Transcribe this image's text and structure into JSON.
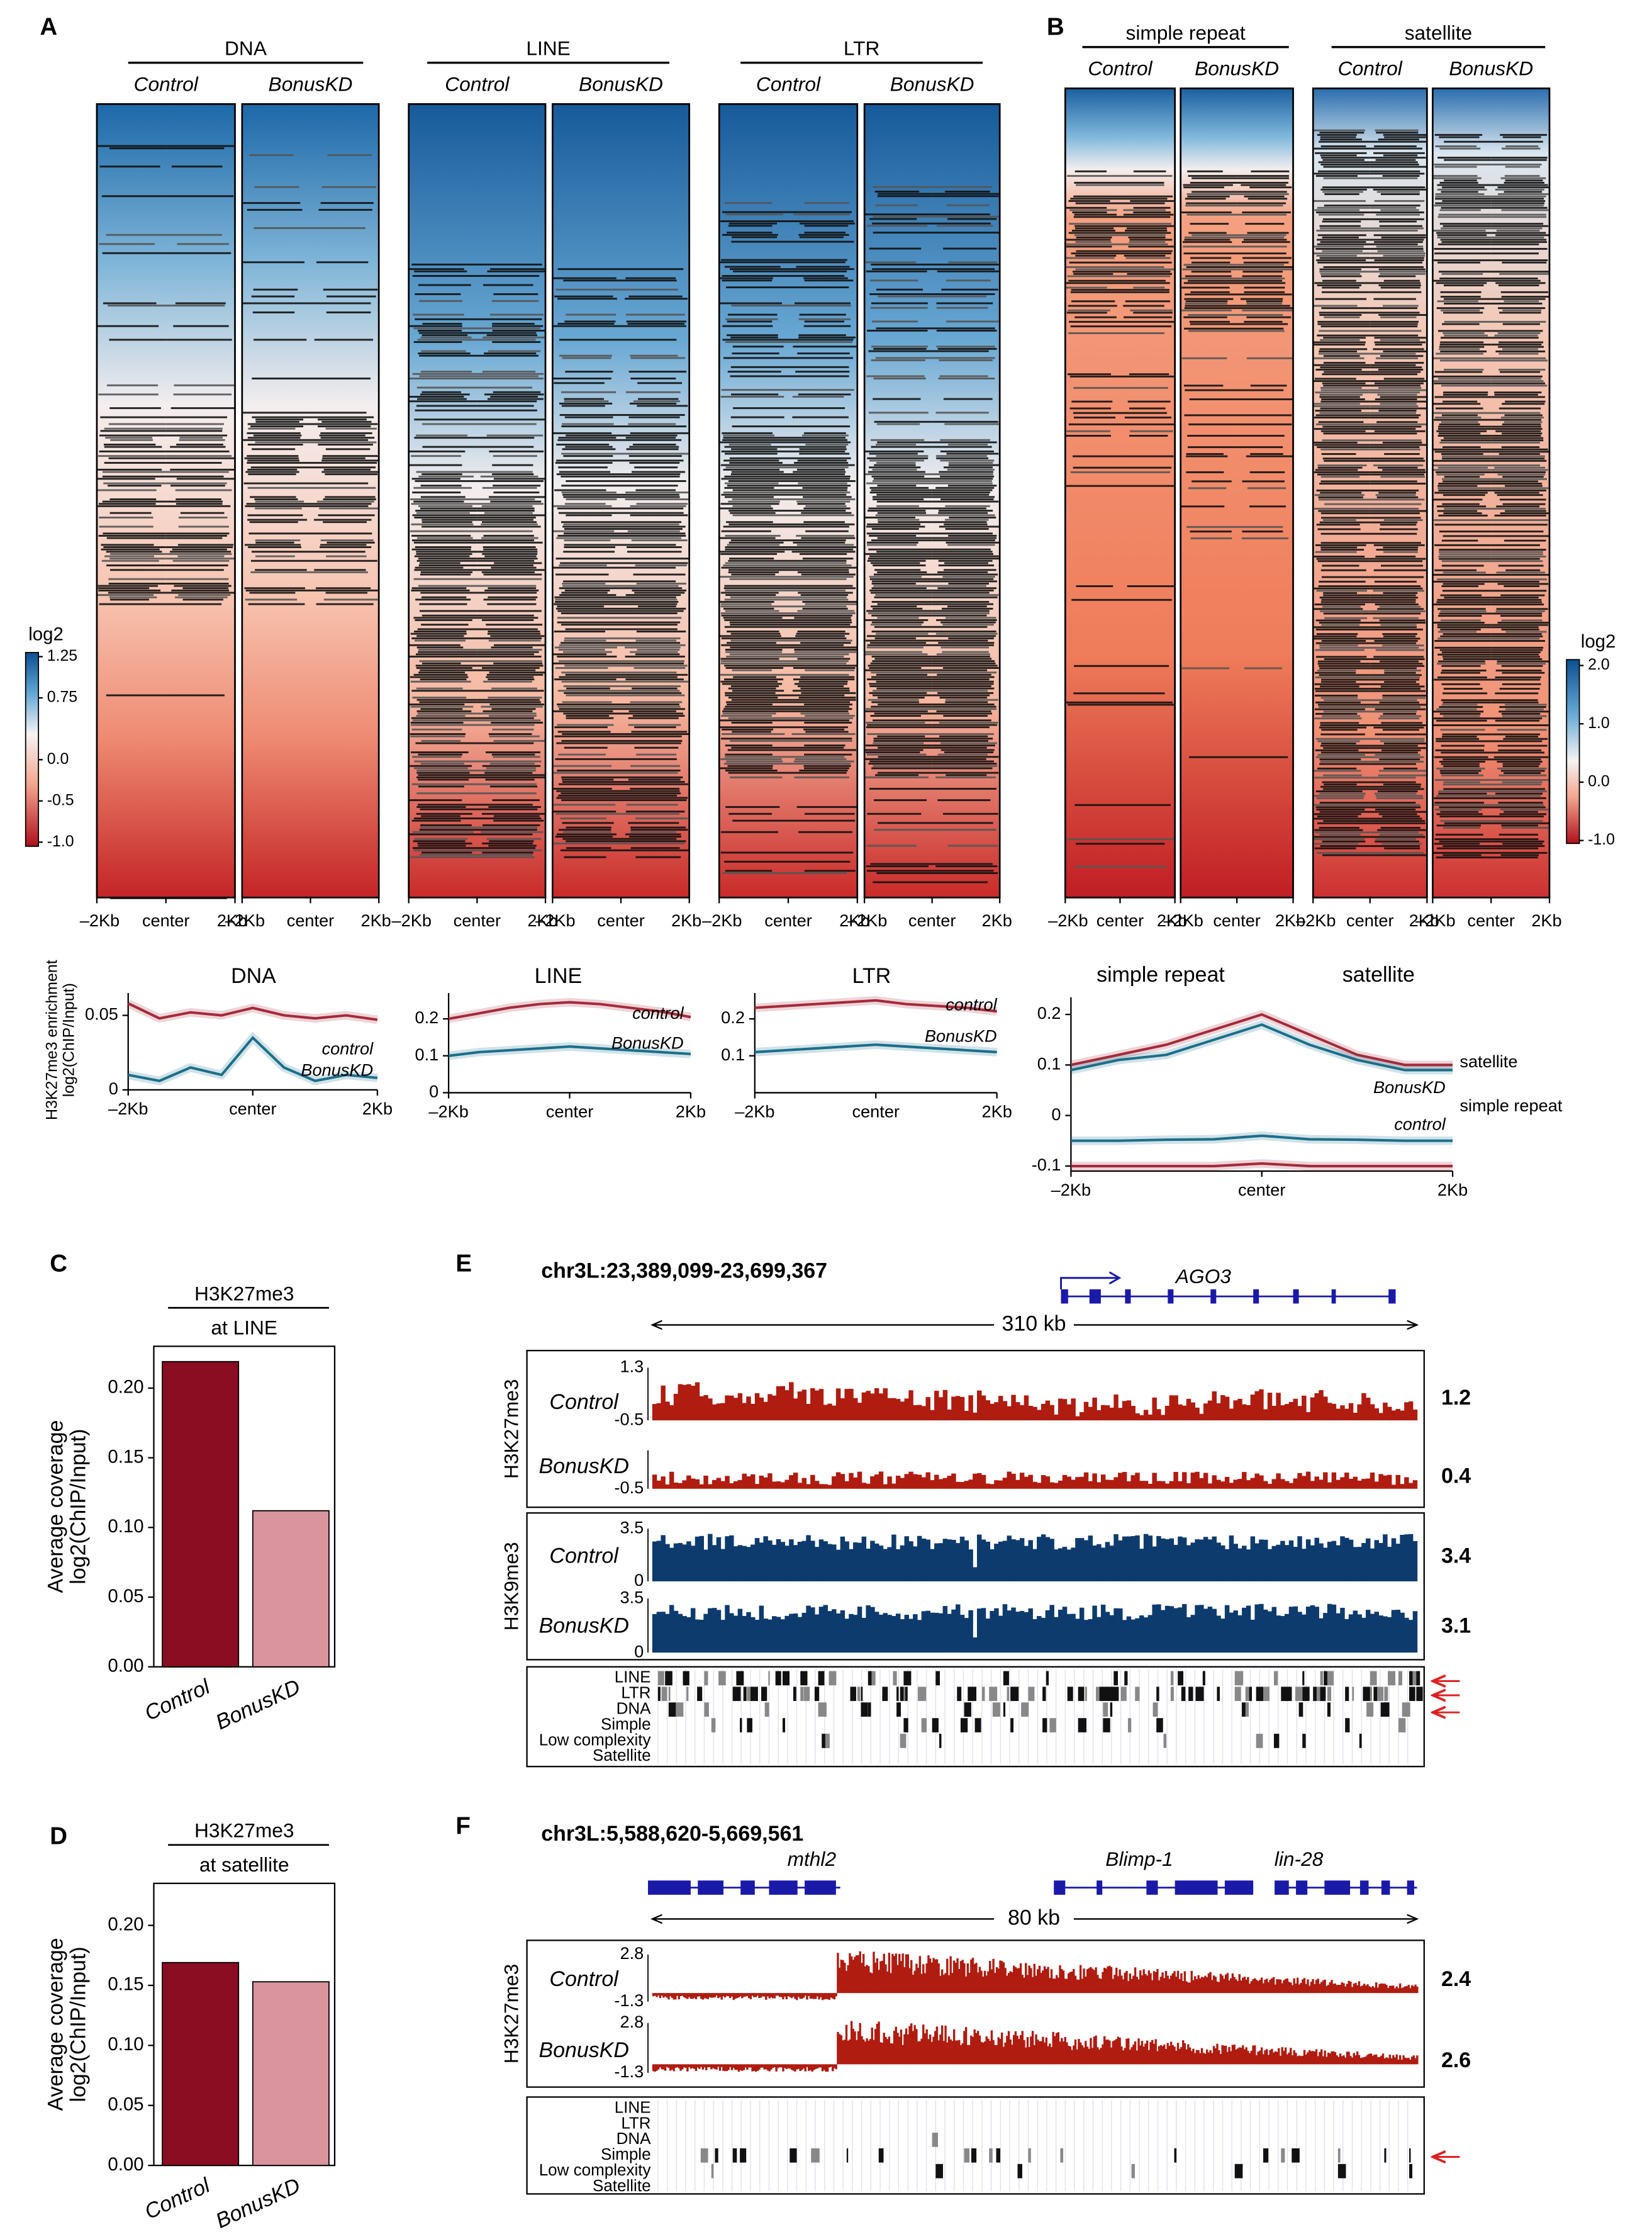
{
  "panel_a": {
    "label": "A",
    "groups": [
      {
        "title": "DNA",
        "conditions": [
          "Control",
          "BonusKD"
        ]
      },
      {
        "title": "LINE",
        "conditions": [
          "Control",
          "BonusKD"
        ]
      },
      {
        "title": "LTR",
        "conditions": [
          "Control",
          "BonusKD"
        ]
      }
    ],
    "colorbar": {
      "title": "log2",
      "ylim": [
        -1.05,
        1.3
      ],
      "yticks": [
        1.25,
        0.75,
        {
          "value": 0,
          "label": "0.0"
        },
        -0.5,
        {
          "value": -1,
          "label": "-1.0"
        }
      ]
    }
  },
  "panel_b": {
    "label": "B",
    "groups": [
      {
        "title": "simple repeat",
        "conditions": [
          "Control",
          "BonusKD"
        ]
      },
      {
        "title": "satellite",
        "conditions": [
          "Control",
          "BonusKD"
        ]
      }
    ],
    "colorbar": {
      "title": "log2",
      "ylim": [
        -1.05,
        2.1
      ],
      "yticks": [
        {
          "value": 2,
          "label": "2.0"
        },
        {
          "value": 1,
          "label": "1.0"
        },
        {
          "value": 0,
          "label": "0.0"
        },
        {
          "value": -1,
          "label": "-1.0"
        }
      ]
    }
  },
  "heatmap_xticks": [
    "–2Kb",
    "center",
    "2Kb"
  ],
  "profiles": {
    "ylabel": [
      "H3K27me3 enrichment",
      "log2(ChIP/Input)"
    ],
    "x": [
      -2,
      -1.5,
      -1,
      -0.5,
      0,
      0.5,
      1,
      1.5,
      2
    ],
    "xlim": [
      -2,
      2
    ],
    "xticks": [
      {
        "value": -2,
        "label": "–2Kb"
      },
      {
        "value": 0,
        "label": "center"
      },
      {
        "value": 2,
        "label": "2Kb"
      }
    ],
    "plots": [
      {
        "titles": [
          "DNA"
        ],
        "ylim": [
          0,
          0.065
        ],
        "yticks": [
          0,
          0.05
        ],
        "series": [
          {
            "name": "control",
            "color": "#a52a3a",
            "values": [
              0.058,
              0.048,
              0.052,
              0.05,
              0.055,
              0.05,
              0.048,
              0.05,
              0.047
            ]
          },
          {
            "name": "BonusKD",
            "color": "#1b6f8a",
            "values": [
              0.01,
              0.006,
              0.015,
              0.01,
              0.035,
              0.015,
              0.006,
              0.01,
              0.008
            ]
          }
        ]
      },
      {
        "titles": [
          "LINE"
        ],
        "ylim": [
          0,
          0.27
        ],
        "yticks": [
          0,
          0.1,
          0.2
        ],
        "series": [
          {
            "name": "control",
            "color": "#a52a3a",
            "values": [
              0.2,
              0.215,
              0.23,
              0.24,
              0.245,
              0.24,
              0.23,
              0.22,
              0.205
            ]
          },
          {
            "name": "BonusKD",
            "color": "#1b6f8a",
            "values": [
              0.1,
              0.11,
              0.115,
              0.12,
              0.125,
              0.12,
              0.115,
              0.11,
              0.105
            ]
          }
        ]
      },
      {
        "titles": [
          "LTR"
        ],
        "ylim": [
          0,
          0.27
        ],
        "yticks": [
          0.1,
          0.2
        ],
        "series": [
          {
            "name": "control",
            "color": "#a52a3a",
            "values": [
              0.23,
              0.235,
              0.24,
              0.245,
              0.25,
              0.24,
              0.235,
              0.23,
              0.22
            ]
          },
          {
            "name": "BonusKD",
            "color": "#1b6f8a",
            "values": [
              0.11,
              0.115,
              0.12,
              0.125,
              0.13,
              0.125,
              0.12,
              0.115,
              0.11
            ]
          }
        ]
      },
      {
        "titles": [
          "simple repeat",
          "satellite"
        ],
        "ylim": [
          -0.11,
          0.234
        ],
        "yticks": [
          -0.1,
          0,
          0.1,
          0.2
        ],
        "series": [
          {
            "name": "BonusKD",
            "color": "#1b6f8a",
            "values": [
              -0.05,
              -0.05,
              -0.048,
              -0.047,
              -0.04,
              -0.047,
              -0.048,
              -0.05,
              -0.05
            ]
          },
          {
            "name": "control",
            "color": "#a52a3a",
            "values": [
              -0.1,
              -0.1,
              -0.1,
              -0.1,
              -0.095,
              -0.1,
              -0.1,
              -0.1,
              -0.1
            ]
          },
          {
            "color": "#a52a3a",
            "values": [
              0.1,
              0.12,
              0.14,
              0.17,
              0.2,
              0.16,
              0.12,
              0.1,
              0.1
            ]
          },
          {
            "color": "#1b6f8a",
            "values": [
              0.09,
              0.11,
              0.12,
              0.15,
              0.18,
              0.14,
              0.11,
              0.09,
              0.09
            ]
          }
        ],
        "annotations": [
          "satellite",
          "simple repeat"
        ]
      }
    ]
  },
  "panel_c": {
    "label": "C",
    "title": "H3K27me3",
    "subtitle": "at LINE",
    "ylabel": [
      "Average coverage",
      "log2(ChIP/Input)"
    ],
    "categories": [
      "Control",
      "BonusKD"
    ],
    "values": [
      0.219,
      0.112
    ],
    "colors": [
      "#8b0d22",
      "#d9949e"
    ],
    "ylim": [
      0,
      0.23
    ],
    "yticks": [
      {
        "value": 0,
        "label": "0.00"
      },
      0.05,
      {
        "value": 0.1,
        "label": "0.10"
      },
      0.15,
      {
        "value": 0.2,
        "label": "0.20"
      }
    ]
  },
  "panel_d": {
    "label": "D",
    "title": "H3K27me3",
    "subtitle": "at satellite",
    "ylabel": [
      "Average coverage",
      "log2(ChIP/Input)"
    ],
    "categories": [
      "Control",
      "BonusKD"
    ],
    "values": [
      0.169,
      0.153
    ],
    "colors": [
      "#8b0d22",
      "#d9949e"
    ],
    "ylim": [
      0,
      0.235
    ],
    "yticks": [
      {
        "value": 0,
        "label": "0.00"
      },
      0.05,
      {
        "value": 0.1,
        "label": "0.10"
      },
      0.15,
      {
        "value": 0.2,
        "label": "0.20"
      }
    ]
  },
  "panel_e": {
    "label": "E",
    "locus": "chr3L:23,389,099-23,699,367",
    "genes": [
      "AGO3"
    ],
    "scale": "310 kb",
    "marks": [
      {
        "name": "H3K27me3",
        "tracks": [
          {
            "name": "Control",
            "range": [
              1.3,
              -0.5
            ],
            "value": 1.2
          },
          {
            "name": "BonusKD",
            "range": [
              -0.5
            ],
            "value": 0.4
          }
        ]
      },
      {
        "name": "H3K9me3",
        "tracks": [
          {
            "name": "Control",
            "range": [
              3.5,
              0
            ],
            "value": 3.4
          },
          {
            "name": "BonusKD",
            "range": [
              3.5,
              0
            ],
            "value": 3.1
          }
        ]
      }
    ],
    "repeats": [
      "LINE",
      "LTR",
      "DNA",
      "Simple",
      "Low complexity",
      "Satellite"
    ]
  },
  "panel_f": {
    "label": "F",
    "locus": "chr3L:5,588,620-5,669,561",
    "genes": [
      "mthl2",
      "Blimp-1",
      "lin-28"
    ],
    "scale": "80 kb",
    "marks": [
      {
        "name": "H3K27me3",
        "tracks": [
          {
            "name": "Control",
            "range": [
              2.8,
              -1.3
            ],
            "value": 2.4
          },
          {
            "name": "BonusKD",
            "range": [
              2.8,
              -1.3
            ],
            "value": 2.6
          }
        ]
      }
    ],
    "repeats": [
      "LINE",
      "LTR",
      "DNA",
      "Simple",
      "Low complexity",
      "Satellite"
    ]
  }
}
